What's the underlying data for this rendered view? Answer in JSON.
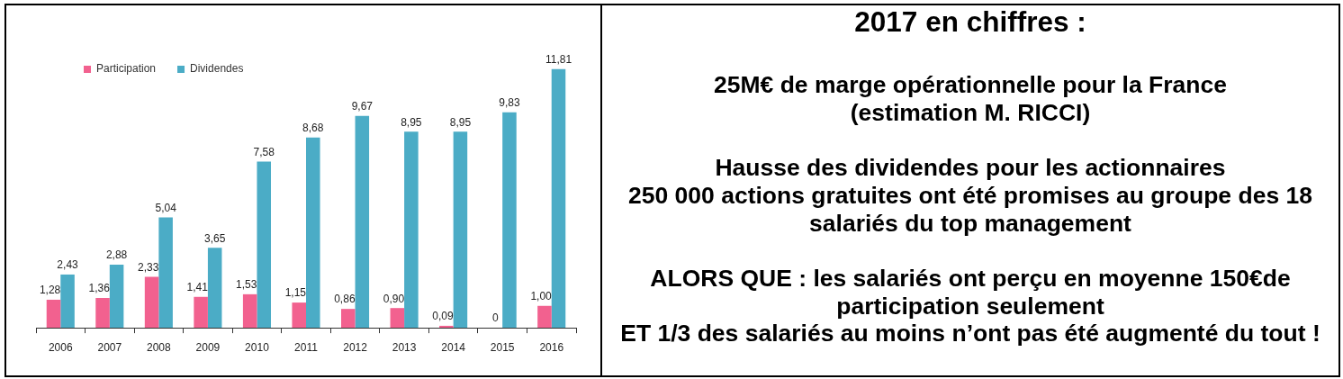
{
  "chart_data": [
    {
      "type": "bar",
      "categories": [
        "2006",
        "2007",
        "2008",
        "2009",
        "2010",
        "2011",
        "2012",
        "2013",
        "2014",
        "2015",
        "2016"
      ],
      "series": [
        {
          "name": "Participation",
          "color": "#f2618f",
          "values": [
            1.28,
            1.36,
            2.33,
            1.41,
            1.53,
            1.15,
            0.86,
            0.9,
            0.09,
            0,
            1.0
          ],
          "value_labels": [
            "1,28",
            "1,36",
            "2,33",
            "1,41",
            "1,53",
            "1,15",
            "0,86",
            "0,90",
            "0,09",
            "0",
            "1,00"
          ]
        },
        {
          "name": "Dividendes",
          "color": "#4bacc6",
          "values": [
            2.43,
            2.88,
            5.04,
            3.65,
            7.58,
            8.68,
            9.67,
            8.95,
            8.95,
            9.83,
            11.81
          ],
          "value_labels": [
            "2,43",
            "2,88",
            "5,04",
            "3,65",
            "7,58",
            "8,68",
            "9,67",
            "8,95",
            "8,95",
            "9,83",
            "11,81"
          ]
        }
      ],
      "tick_labels": "x",
      "legend": "top left"
    },
    {
      "type": "other",
      "title": "2017 en chiffres :",
      "annotations": [
        "25M€ de marge opérationnelle pour la France\n(estimation M. RICCI)",
        "Hausse des dividendes pour les actionnaires\n250 000 actions gratuites ont été promises au groupe des 18\nsalariés du top management",
        "ALORS QUE : les salariés ont perçu en moyenne 150€de\nparticipation seulement\nET 1/3 des salariés au moins n’ont pas été augmenté du tout !"
      ]
    }
  ]
}
